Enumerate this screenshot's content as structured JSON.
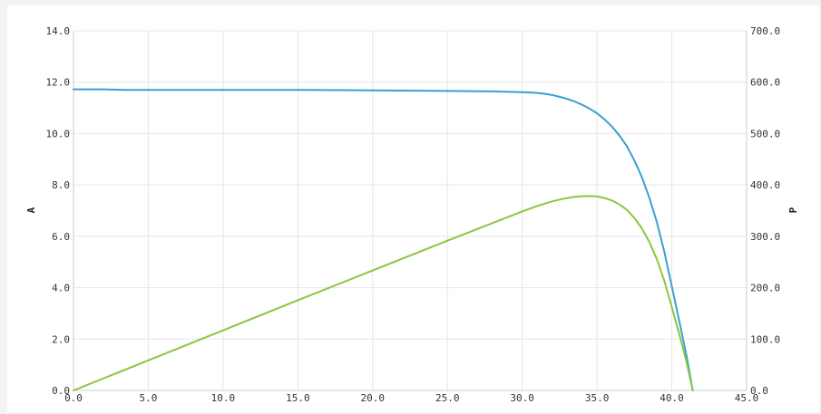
{
  "chart_data": {
    "type": "line",
    "x_ticks": [
      "0.0",
      "5.0",
      "10.0",
      "15.0",
      "20.0",
      "25.0",
      "30.0",
      "35.0",
      "40.0",
      "45.0"
    ],
    "y_left_ticks": [
      "0.0",
      "2.0",
      "4.0",
      "6.0",
      "8.0",
      "10.0",
      "12.0",
      "14.0"
    ],
    "y_right_ticks": [
      "0.0",
      "100.0",
      "200.0",
      "300.0",
      "400.0",
      "500.0",
      "600.0",
      "700.0"
    ],
    "y_left_label": "A",
    "y_right_label": "P",
    "xlim": [
      0,
      45
    ],
    "ylim_left": [
      0,
      14
    ],
    "ylim_right": [
      0,
      700
    ],
    "grid": true,
    "series": [
      {
        "axis": "left",
        "color": "#3a9fd4",
        "x": [
          0,
          2,
          3.5,
          5,
          10,
          15,
          18,
          20,
          25,
          28,
          30,
          30.5,
          31,
          31.5,
          32,
          32.5,
          33,
          33.5,
          34,
          34.5,
          35,
          35.5,
          36,
          36.5,
          37,
          37.5,
          38,
          38.5,
          39,
          39.5,
          40,
          40.5,
          41,
          41.4
        ],
        "y": [
          11.72,
          11.72,
          11.7,
          11.7,
          11.7,
          11.7,
          11.69,
          11.68,
          11.66,
          11.64,
          11.61,
          11.6,
          11.58,
          11.55,
          11.5,
          11.43,
          11.35,
          11.25,
          11.12,
          10.97,
          10.79,
          10.55,
          10.27,
          9.92,
          9.5,
          8.95,
          8.3,
          7.5,
          6.55,
          5.4,
          4.05,
          2.7,
          1.3,
          0
        ]
      },
      {
        "axis": "right",
        "color": "#8cc63f",
        "x": [
          0,
          5,
          10,
          15,
          20,
          25,
          30,
          31,
          32,
          32.5,
          33,
          33.5,
          34,
          34.5,
          35,
          35.5,
          36,
          36.5,
          37,
          37.5,
          38,
          38.5,
          39,
          39.5,
          40,
          40.5,
          41,
          41.4
        ],
        "y": [
          0,
          58.5,
          117,
          175.5,
          233.6,
          291.5,
          348.3,
          359,
          368,
          371.5,
          374.5,
          376.8,
          378,
          378.5,
          377.8,
          374.5,
          369.7,
          362.1,
          351.5,
          335.6,
          315.4,
          288.8,
          255.5,
          213.3,
          162,
          109.4,
          53.3,
          0
        ]
      }
    ]
  }
}
